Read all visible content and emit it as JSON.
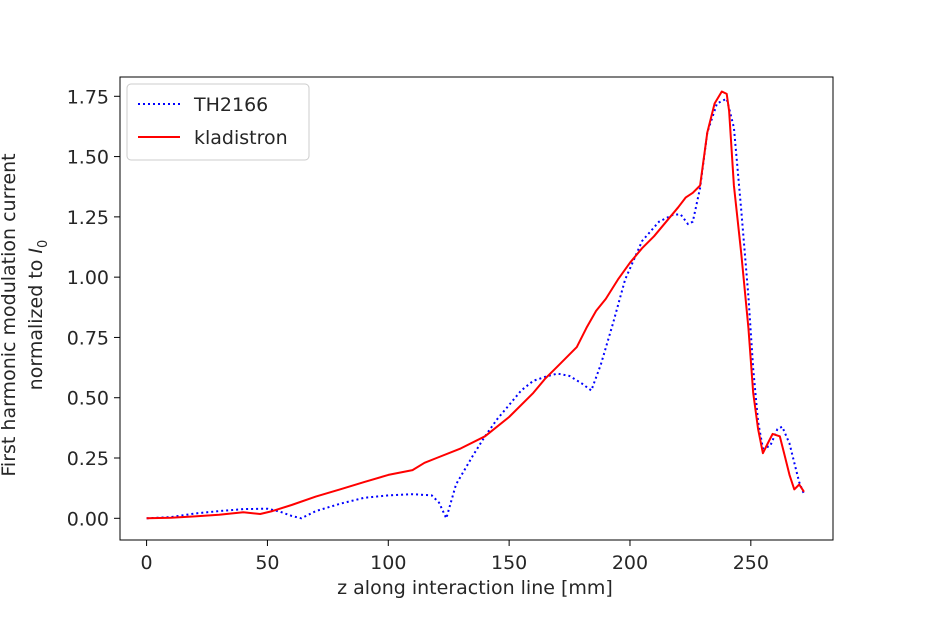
{
  "chart_data": {
    "type": "line",
    "title": "",
    "xlabel": "z along interaction line [mm]",
    "ylabel_line1": "First harmonic modulation current",
    "ylabel_line2": "normalized to ",
    "ylabel_symbol": "I",
    "ylabel_subscript": "0",
    "xlim": [
      -11,
      284
    ],
    "ylim": [
      -0.09,
      1.83
    ],
    "xticks": [
      0,
      50,
      100,
      150,
      200,
      250
    ],
    "xtick_labels": [
      "0",
      "50",
      "100",
      "150",
      "200",
      "250"
    ],
    "yticks": [
      0.0,
      0.25,
      0.5,
      0.75,
      1.0,
      1.25,
      1.5,
      1.75
    ],
    "ytick_labels": [
      "0.00",
      "0.25",
      "0.50",
      "0.75",
      "1.00",
      "1.25",
      "1.50",
      "1.75"
    ],
    "grid": false,
    "legend_position": "top-left",
    "series": [
      {
        "name": "TH2166",
        "color": "#0000ff",
        "style": "dotted",
        "x": [
          0,
          10,
          20,
          30,
          40,
          50,
          55,
          60,
          64,
          70,
          80,
          90,
          100,
          110,
          118,
          121,
          124,
          128,
          135,
          140,
          145,
          150,
          155,
          160,
          166,
          170,
          175,
          180,
          184,
          188,
          193,
          198,
          205,
          212,
          218,
          221,
          224,
          226,
          229,
          232,
          236,
          240,
          243,
          246,
          249,
          251,
          253,
          255,
          258,
          261,
          263,
          266,
          268,
          270,
          272
        ],
        "y": [
          0,
          0.005,
          0.02,
          0.03,
          0.038,
          0.04,
          0.028,
          0.01,
          0.0,
          0.03,
          0.06,
          0.085,
          0.095,
          0.1,
          0.095,
          0.065,
          0.0,
          0.14,
          0.26,
          0.34,
          0.41,
          0.47,
          0.53,
          0.57,
          0.59,
          0.6,
          0.59,
          0.56,
          0.53,
          0.64,
          0.81,
          0.99,
          1.15,
          1.23,
          1.26,
          1.26,
          1.22,
          1.23,
          1.37,
          1.6,
          1.72,
          1.74,
          1.62,
          1.28,
          0.92,
          0.62,
          0.4,
          0.29,
          0.3,
          0.37,
          0.38,
          0.31,
          0.23,
          0.15,
          0.1
        ]
      },
      {
        "name": "kladistron",
        "color": "#ff0000",
        "style": "solid",
        "x": [
          0,
          10,
          20,
          30,
          40,
          47,
          52,
          60,
          70,
          80,
          90,
          100,
          110,
          115,
          120,
          130,
          140,
          150,
          160,
          165,
          170,
          178,
          182,
          186,
          190,
          195,
          200,
          205,
          210,
          215,
          220,
          223,
          226,
          229,
          232,
          235,
          238,
          240,
          241,
          243,
          246,
          249,
          251,
          253,
          255,
          257,
          259,
          262,
          264,
          266,
          268,
          270,
          272
        ],
        "y": [
          0,
          0.002,
          0.008,
          0.015,
          0.025,
          0.018,
          0.03,
          0.055,
          0.09,
          0.12,
          0.15,
          0.18,
          0.2,
          0.23,
          0.25,
          0.29,
          0.34,
          0.42,
          0.52,
          0.58,
          0.63,
          0.71,
          0.79,
          0.86,
          0.91,
          0.99,
          1.06,
          1.12,
          1.17,
          1.23,
          1.29,
          1.33,
          1.35,
          1.38,
          1.6,
          1.72,
          1.77,
          1.76,
          1.69,
          1.38,
          1.1,
          0.79,
          0.52,
          0.37,
          0.27,
          0.31,
          0.35,
          0.34,
          0.26,
          0.18,
          0.12,
          0.14,
          0.11
        ]
      }
    ]
  }
}
